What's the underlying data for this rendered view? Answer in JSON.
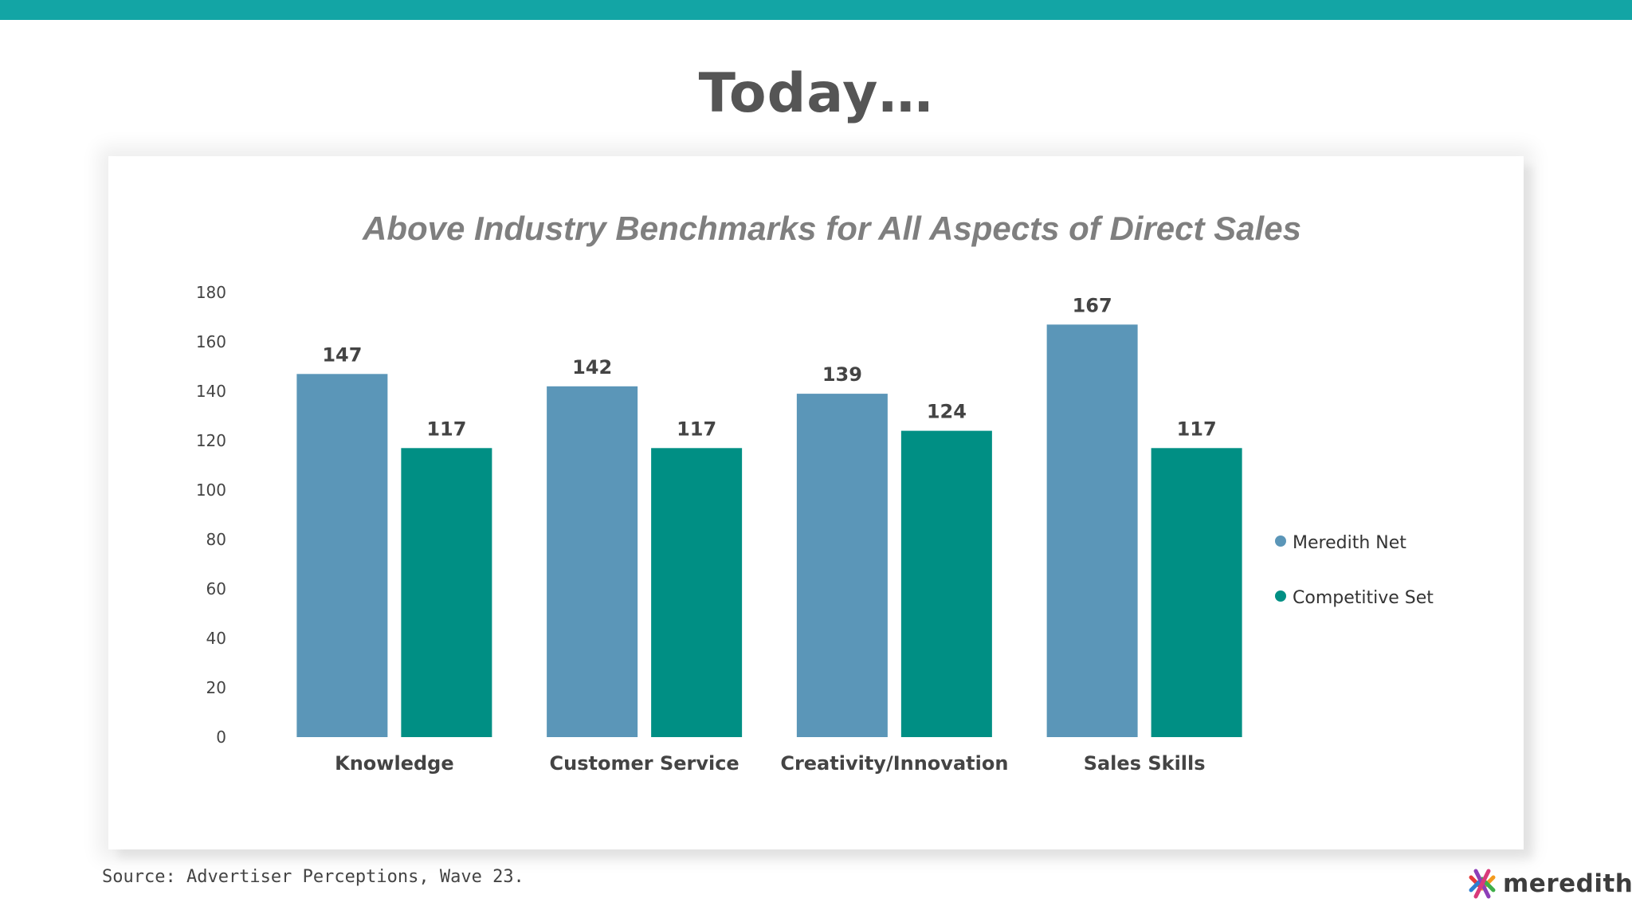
{
  "page": {
    "title": "Today…",
    "source": "Source: Advertiser Perceptions, Wave 23.",
    "brand": "meredith",
    "accent_color": "#13a5a5"
  },
  "chart_data": {
    "type": "bar",
    "title": "Above Industry Benchmarks for All Aspects of Direct Sales",
    "categories": [
      "Knowledge",
      "Customer Service",
      "Creativity/Innovation",
      "Sales Skills"
    ],
    "series": [
      {
        "name": "Meredith Net",
        "values": [
          147,
          142,
          139,
          167
        ],
        "color": "#5b96b8"
      },
      {
        "name": "Competitive Set",
        "values": [
          117,
          117,
          124,
          117
        ],
        "color": "#008f84"
      }
    ],
    "ylim": [
      0,
      180
    ],
    "yticks": [
      0,
      20,
      40,
      60,
      80,
      100,
      120,
      140,
      160,
      180
    ],
    "xlabel": "",
    "ylabel": "",
    "grid": false,
    "legend": "right",
    "data_labels": true
  }
}
